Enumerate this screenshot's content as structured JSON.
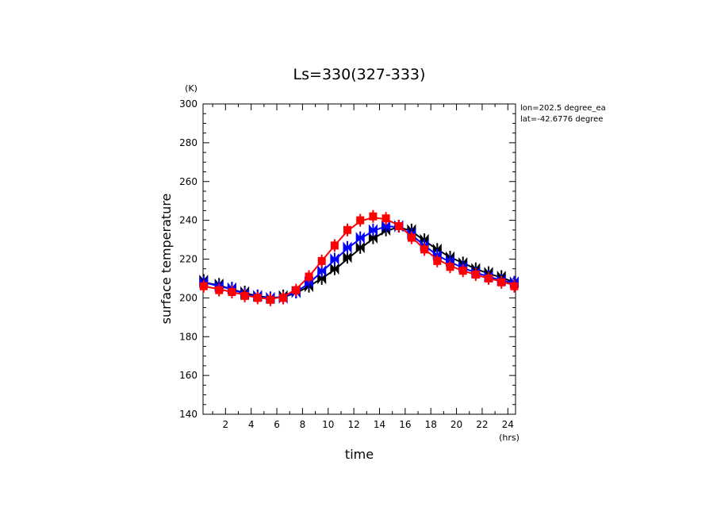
{
  "chart_data": {
    "type": "line",
    "title": "Ls=330(327-333)",
    "xlabel": "time",
    "ylabel": "surface temperature",
    "xunit": "(hrs)",
    "yunit": "(K)",
    "xlim": [
      0.25,
      24.6
    ],
    "ylim": [
      140,
      300
    ],
    "xticks": [
      2,
      4,
      6,
      8,
      10,
      12,
      14,
      16,
      18,
      20,
      22,
      24
    ],
    "yticks": [
      140,
      160,
      180,
      200,
      220,
      240,
      260,
      280,
      300
    ],
    "annotations": [
      "lon=202.5 degree_ea",
      "lat=-42.6776 degree"
    ],
    "grid": false,
    "series": [
      {
        "color": "#000000",
        "marker": "bowtie",
        "x": [
          0.3,
          1.5,
          2.5,
          3.5,
          4.5,
          5.5,
          6.5,
          7.5,
          8.5,
          9.5,
          10.5,
          11.5,
          12.5,
          13.5,
          14.5,
          15.5,
          16.5,
          17.5,
          18.5,
          19.5,
          20.5,
          21.5,
          22.5,
          23.5,
          24.5
        ],
        "y": [
          209,
          207,
          205,
          203,
          201,
          200,
          201,
          203,
          206,
          210,
          215,
          221,
          226,
          231,
          235,
          237,
          235,
          230,
          225,
          221,
          218,
          215,
          213,
          211,
          208
        ],
        "line": [
          208,
          206.5,
          204.5,
          202.5,
          201,
          200,
          200.5,
          202.5,
          206,
          210,
          214.5,
          220,
          225.5,
          230.5,
          234.5,
          236.5,
          234.5,
          229.5,
          225,
          221,
          218,
          215,
          212.5,
          210.5,
          208
        ]
      },
      {
        "color": "#0000ff",
        "marker": "bowtie",
        "x": [
          0.3,
          1.5,
          2.5,
          3.5,
          4.5,
          5.5,
          6.5,
          7.5,
          8.5,
          9.5,
          10.5,
          11.5,
          12.5,
          13.5,
          14.5,
          15.5,
          16.5,
          17.5,
          18.5,
          19.5,
          20.5,
          21.5,
          22.5,
          23.5,
          24.5
        ],
        "y": [
          208,
          206,
          205,
          202,
          201,
          200,
          200,
          203,
          208,
          214,
          220,
          226,
          231,
          235,
          237,
          237,
          233,
          227,
          222,
          219,
          216,
          213,
          211,
          209,
          208
        ],
        "line": [
          208,
          206,
          204.5,
          202,
          200.5,
          200,
          200.5,
          203,
          207.5,
          213.5,
          219.5,
          225.5,
          230.5,
          234.5,
          237,
          236.5,
          232.5,
          227,
          222,
          218.5,
          215.5,
          213,
          211,
          209,
          207.5
        ]
      },
      {
        "color": "#ff0000",
        "marker": "square",
        "x": [
          0.3,
          1.5,
          2.5,
          3.5,
          4.5,
          5.5,
          6.5,
          7.5,
          8.5,
          9.5,
          10.5,
          11.5,
          12.5,
          13.5,
          14.5,
          15.5,
          16.5,
          17.5,
          18.5,
          19.5,
          20.5,
          21.5,
          22.5,
          23.5,
          24.5
        ],
        "y": [
          206,
          204,
          203,
          201,
          200,
          199,
          200,
          204,
          211,
          219,
          227,
          235,
          240,
          242,
          241,
          237,
          231,
          225,
          219,
          216,
          214,
          212,
          210,
          208,
          206
        ],
        "line": [
          206,
          204.5,
          203,
          201.5,
          200,
          199.5,
          200.5,
          204.5,
          211,
          219,
          227,
          234.5,
          239.5,
          241.5,
          240.5,
          237.5,
          231.5,
          225,
          220,
          216.5,
          214,
          212,
          210,
          208.5,
          206.5
        ]
      }
    ]
  }
}
